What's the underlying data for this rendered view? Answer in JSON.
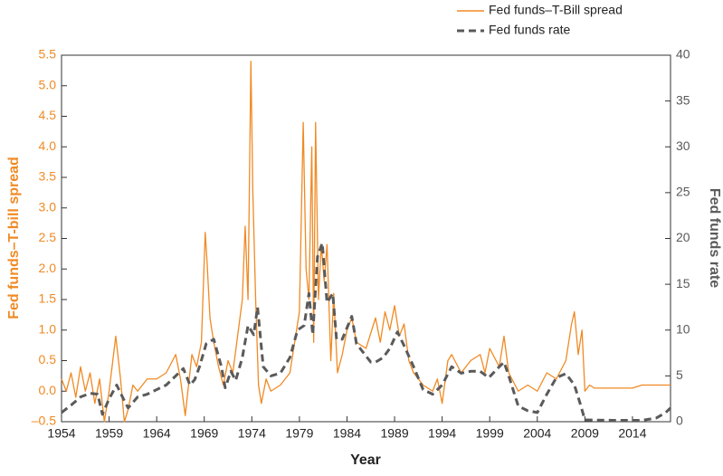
{
  "chart_data": {
    "type": "line",
    "x_label": "Year",
    "y_label": "Fed funds–T-bill spread",
    "y2_label": "Fed funds rate",
    "xlim": [
      1954,
      2018
    ],
    "xticks": [
      1954,
      1959,
      1964,
      1969,
      1974,
      1979,
      1984,
      1989,
      1994,
      1999,
      2004,
      2009,
      2014
    ],
    "ylim": [
      -0.5,
      5.5
    ],
    "yticks": [
      {
        "value": -0.5,
        "label": "–0.5"
      },
      {
        "value": 0,
        "label": "0.0"
      },
      0.5,
      {
        "value": 1,
        "label": "1.0"
      },
      1.5,
      {
        "value": 2,
        "label": "2.0"
      },
      2.5,
      {
        "value": 3,
        "label": "3.0"
      },
      3.5,
      {
        "value": 4,
        "label": "4.0"
      },
      4.5,
      {
        "value": 5,
        "label": "5.0"
      },
      5.5
    ],
    "y2lim": [
      0,
      40
    ],
    "y2ticks": [
      0,
      5,
      10,
      15,
      20,
      25,
      30,
      35,
      40
    ],
    "legend": "top-right",
    "series": [
      {
        "name": "Fed funds–T-Bill spread",
        "color": "#f08a24",
        "dash": false,
        "x": [
          1954,
          1954.5,
          1955,
          1955.5,
          1956,
          1956.5,
          1957,
          1957.5,
          1958,
          1958.5,
          1959,
          1959.7,
          1960.2,
          1960.6,
          1961,
          1961.5,
          1962,
          1962.5,
          1963,
          1964,
          1965,
          1966,
          1966.5,
          1967,
          1967.7,
          1968.2,
          1968.7,
          1969.1,
          1969.3,
          1969.6,
          1970,
          1970.5,
          1971,
          1971.5,
          1972,
          1972.5,
          1973,
          1973.3,
          1973.6,
          1973.9,
          1974.1,
          1974.4,
          1974.7,
          1975,
          1975.5,
          1976,
          1977,
          1978,
          1978.5,
          1979,
          1979.4,
          1979.7,
          1980,
          1980.3,
          1980.5,
          1980.7,
          1981,
          1981.3,
          1981.6,
          1981.9,
          1982.3,
          1982.6,
          1983,
          1983.5,
          1984,
          1984.5,
          1985,
          1986,
          1987,
          1987.5,
          1988,
          1988.5,
          1989,
          1989.5,
          1990,
          1990.5,
          1991,
          1992,
          1993,
          1993.5,
          1994,
          1994.6,
          1995,
          1996,
          1997,
          1998,
          1998.5,
          1999,
          2000,
          2000.5,
          2001,
          2002,
          2003,
          2004,
          2005,
          2006,
          2007,
          2007.6,
          2007.9,
          2008.3,
          2008.7,
          2009,
          2009.5,
          2010,
          2012,
          2014,
          2015,
          2016,
          2017,
          2018
        ],
        "values": [
          0.2,
          0,
          0.3,
          -0.1,
          0.4,
          0,
          0.3,
          -0.2,
          0.2,
          -0.5,
          0,
          0.9,
          0.2,
          -0.5,
          -0.3,
          0.1,
          0,
          0.1,
          0.2,
          0.2,
          0.3,
          0.6,
          0.2,
          -0.4,
          0.6,
          0.4,
          0.8,
          2.6,
          2.1,
          1.2,
          0.8,
          0.4,
          0.1,
          0.5,
          0.3,
          0.9,
          1.5,
          2.7,
          1.5,
          5.4,
          3.3,
          1.5,
          0.1,
          -0.2,
          0.2,
          0,
          0.1,
          0.3,
          0.8,
          1.3,
          4.4,
          2,
          1.5,
          4,
          0.8,
          4.4,
          1.5,
          2.4,
          1.8,
          2.4,
          0.5,
          1.6,
          0.3,
          0.6,
          1,
          1.2,
          0.8,
          0.7,
          1.2,
          0.8,
          1.3,
          1,
          1.4,
          0.9,
          1.1,
          0.5,
          0.3,
          0.1,
          0,
          0.2,
          -0.2,
          0.5,
          0.6,
          0.3,
          0.5,
          0.6,
          0.3,
          0.7,
          0.4,
          0.9,
          0.3,
          0,
          0.1,
          0,
          0.3,
          0.2,
          0.5,
          1.1,
          1.3,
          0.6,
          1,
          0,
          0.1,
          0.05,
          0.05,
          0.05,
          0.1,
          0.1,
          0.1,
          0.1
        ]
      },
      {
        "name": "Fed funds rate",
        "color": "#5a5a5a",
        "dash": true,
        "axis": "y2",
        "x": [
          1954,
          1955,
          1956,
          1957,
          1957.8,
          1958.3,
          1959,
          1959.8,
          1960.5,
          1961,
          1962,
          1963,
          1964,
          1965,
          1966,
          1966.8,
          1967.5,
          1968,
          1968.5,
          1969.2,
          1970,
          1970.8,
          1971.2,
          1971.8,
          1972.3,
          1973,
          1973.6,
          1974.2,
          1974.6,
          1975.2,
          1976,
          1977,
          1978,
          1978.8,
          1979.5,
          1980,
          1980.4,
          1980.9,
          1981.4,
          1981.9,
          1982.5,
          1982.9,
          1983.5,
          1984.5,
          1985,
          1986.5,
          1987,
          1987.8,
          1988.5,
          1989.3,
          1990,
          1991,
          1992,
          1993,
          1994,
          1995,
          1996,
          1997,
          1998,
          1998.9,
          2000,
          2000.5,
          2001,
          2002,
          2003,
          2004,
          2005,
          2006,
          2007,
          2007.9,
          2008.5,
          2009,
          2012,
          2015,
          2016.5,
          2017.5,
          2018
        ],
        "values": [
          1,
          1.8,
          2.7,
          3.1,
          3,
          0.8,
          2.5,
          4,
          2.5,
          1.5,
          2.7,
          3,
          3.5,
          4,
          5,
          5.8,
          4,
          4.6,
          6,
          8.5,
          9,
          6,
          3.7,
          5.5,
          4.5,
          7,
          10.5,
          9.5,
          12.5,
          6,
          5,
          5.3,
          7,
          10,
          10.5,
          14,
          9.5,
          18,
          19.5,
          13,
          14,
          9,
          9,
          11.5,
          8.5,
          6.5,
          6.5,
          7,
          8,
          9.8,
          8.3,
          6,
          3.5,
          3,
          4,
          6,
          5.3,
          5.5,
          5.5,
          4.8,
          6,
          6.5,
          5,
          1.7,
          1.2,
          1,
          3,
          4.8,
          5.25,
          4,
          2,
          0.2,
          0.15,
          0.15,
          0.4,
          1,
          1.5
        ]
      }
    ]
  }
}
